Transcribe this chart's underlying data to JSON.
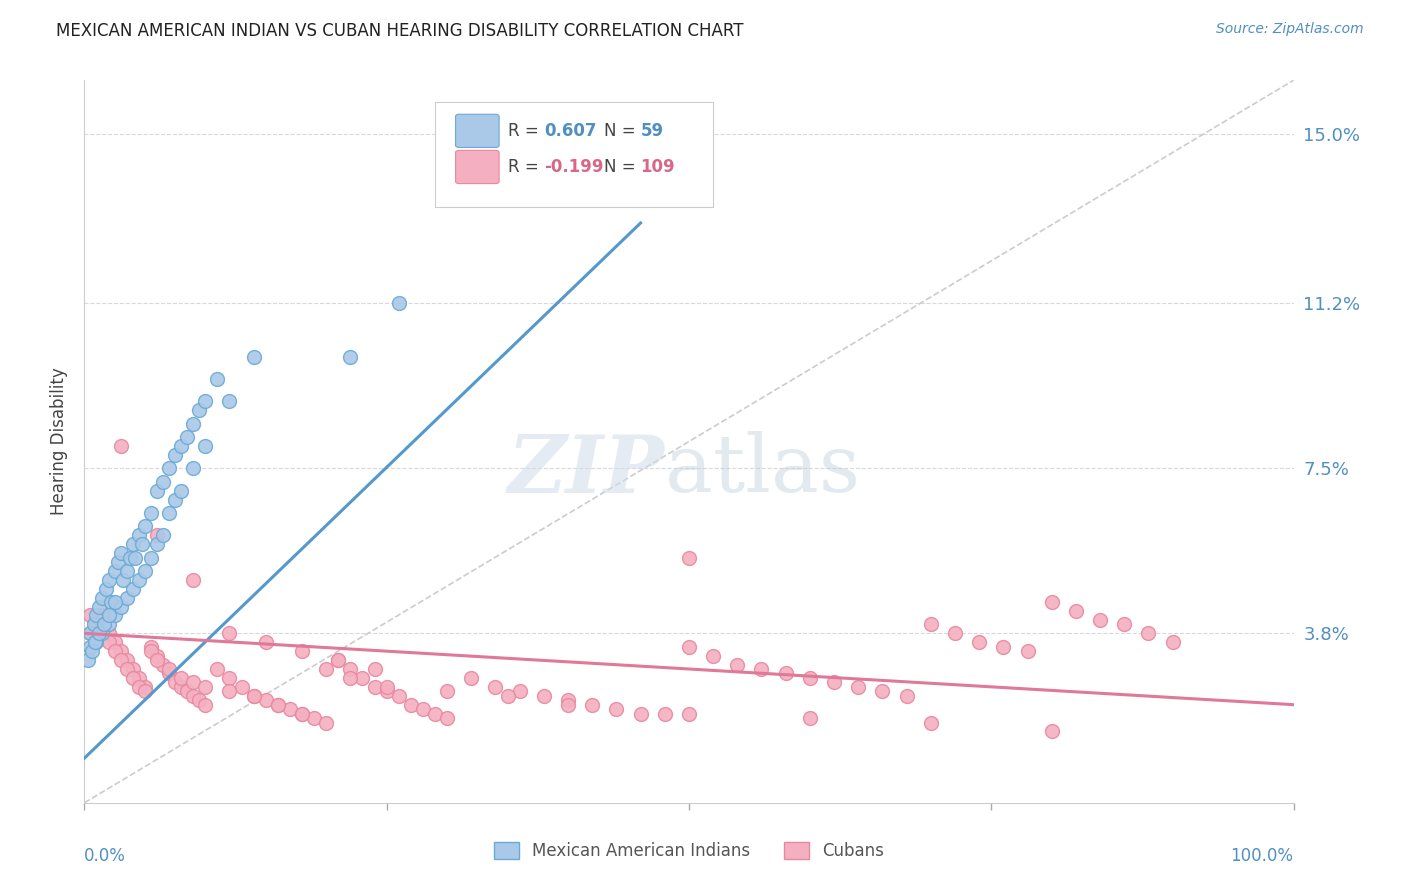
{
  "title": "MEXICAN AMERICAN INDIAN VS CUBAN HEARING DISABILITY CORRELATION CHART",
  "source_text": "Source: ZipAtlas.com",
  "ylabel": "Hearing Disability",
  "ytick_labels": [
    "3.8%",
    "7.5%",
    "11.2%",
    "15.0%"
  ],
  "ytick_values": [
    0.038,
    0.075,
    0.112,
    0.15
  ],
  "xlim": [
    0.0,
    1.0
  ],
  "ylim": [
    0.0,
    0.162
  ],
  "legend_r1": "R = 0.607",
  "legend_n1": "N =  59",
  "legend_r2": "R = -0.199",
  "legend_n2": "N = 109",
  "color_blue_fill": "#aac8e8",
  "color_blue_edge": "#6aaad4",
  "color_blue_line": "#5598cc",
  "color_blue_text": "#5090c0",
  "color_pink_fill": "#f4b0c0",
  "color_pink_edge": "#e888a0",
  "color_pink_line": "#e07898",
  "color_pink_text": "#d86888",
  "color_dashed": "#cccccc",
  "color_grid": "#d8d8e0",
  "blue_scatter_x": [
    0.005,
    0.008,
    0.01,
    0.012,
    0.015,
    0.018,
    0.02,
    0.022,
    0.025,
    0.028,
    0.03,
    0.032,
    0.035,
    0.038,
    0.04,
    0.042,
    0.045,
    0.048,
    0.05,
    0.055,
    0.06,
    0.065,
    0.07,
    0.075,
    0.08,
    0.085,
    0.09,
    0.095,
    0.1,
    0.11,
    0.005,
    0.01,
    0.015,
    0.02,
    0.025,
    0.03,
    0.035,
    0.04,
    0.045,
    0.05,
    0.055,
    0.06,
    0.065,
    0.07,
    0.075,
    0.08,
    0.09,
    0.1,
    0.12,
    0.14,
    0.003,
    0.006,
    0.009,
    0.012,
    0.016,
    0.02,
    0.025,
    0.22,
    0.26
  ],
  "blue_scatter_y": [
    0.038,
    0.04,
    0.042,
    0.044,
    0.046,
    0.048,
    0.05,
    0.045,
    0.052,
    0.054,
    0.056,
    0.05,
    0.052,
    0.055,
    0.058,
    0.055,
    0.06,
    0.058,
    0.062,
    0.065,
    0.07,
    0.072,
    0.075,
    0.078,
    0.08,
    0.082,
    0.085,
    0.088,
    0.09,
    0.095,
    0.035,
    0.036,
    0.038,
    0.04,
    0.042,
    0.044,
    0.046,
    0.048,
    0.05,
    0.052,
    0.055,
    0.058,
    0.06,
    0.065,
    0.068,
    0.07,
    0.075,
    0.08,
    0.09,
    0.1,
    0.032,
    0.034,
    0.036,
    0.038,
    0.04,
    0.042,
    0.045,
    0.1,
    0.112
  ],
  "pink_scatter_x": [
    0.005,
    0.01,
    0.015,
    0.02,
    0.025,
    0.03,
    0.035,
    0.04,
    0.045,
    0.05,
    0.055,
    0.06,
    0.065,
    0.07,
    0.075,
    0.08,
    0.085,
    0.09,
    0.095,
    0.1,
    0.11,
    0.12,
    0.13,
    0.14,
    0.15,
    0.16,
    0.17,
    0.18,
    0.19,
    0.2,
    0.21,
    0.22,
    0.23,
    0.24,
    0.25,
    0.26,
    0.27,
    0.28,
    0.29,
    0.3,
    0.32,
    0.34,
    0.36,
    0.38,
    0.4,
    0.42,
    0.44,
    0.46,
    0.48,
    0.5,
    0.52,
    0.54,
    0.56,
    0.58,
    0.6,
    0.62,
    0.64,
    0.66,
    0.68,
    0.7,
    0.72,
    0.74,
    0.76,
    0.78,
    0.8,
    0.82,
    0.84,
    0.86,
    0.88,
    0.9,
    0.005,
    0.01,
    0.015,
    0.02,
    0.025,
    0.03,
    0.035,
    0.04,
    0.045,
    0.05,
    0.055,
    0.06,
    0.07,
    0.08,
    0.09,
    0.1,
    0.12,
    0.14,
    0.16,
    0.18,
    0.2,
    0.22,
    0.25,
    0.3,
    0.35,
    0.4,
    0.5,
    0.6,
    0.7,
    0.8,
    0.03,
    0.06,
    0.09,
    0.12,
    0.15,
    0.18,
    0.21,
    0.24,
    0.5
  ],
  "pink_scatter_y": [
    0.038,
    0.04,
    0.042,
    0.038,
    0.036,
    0.034,
    0.032,
    0.03,
    0.028,
    0.026,
    0.035,
    0.033,
    0.031,
    0.029,
    0.027,
    0.026,
    0.025,
    0.024,
    0.023,
    0.022,
    0.03,
    0.028,
    0.026,
    0.024,
    0.023,
    0.022,
    0.021,
    0.02,
    0.019,
    0.018,
    0.032,
    0.03,
    0.028,
    0.026,
    0.025,
    0.024,
    0.022,
    0.021,
    0.02,
    0.019,
    0.028,
    0.026,
    0.025,
    0.024,
    0.023,
    0.022,
    0.021,
    0.02,
    0.02,
    0.035,
    0.033,
    0.031,
    0.03,
    0.029,
    0.028,
    0.027,
    0.026,
    0.025,
    0.024,
    0.04,
    0.038,
    0.036,
    0.035,
    0.034,
    0.045,
    0.043,
    0.041,
    0.04,
    0.038,
    0.036,
    0.042,
    0.04,
    0.038,
    0.036,
    0.034,
    0.032,
    0.03,
    0.028,
    0.026,
    0.025,
    0.034,
    0.032,
    0.03,
    0.028,
    0.027,
    0.026,
    0.025,
    0.024,
    0.022,
    0.02,
    0.03,
    0.028,
    0.026,
    0.025,
    0.024,
    0.022,
    0.02,
    0.019,
    0.018,
    0.016,
    0.08,
    0.06,
    0.05,
    0.038,
    0.036,
    0.034,
    0.032,
    0.03,
    0.055
  ],
  "blue_line_x": [
    0.0,
    0.46
  ],
  "blue_line_y": [
    0.01,
    0.13
  ],
  "pink_line_x": [
    0.0,
    1.0
  ],
  "pink_line_y": [
    0.038,
    0.022
  ],
  "dash_line_x": [
    0.0,
    1.0
  ],
  "dash_line_y": [
    0.0,
    0.162
  ]
}
